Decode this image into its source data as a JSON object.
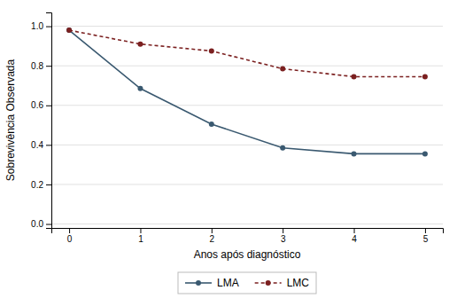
{
  "chart_data": {
    "type": "line",
    "x": [
      0,
      1,
      2,
      3,
      4,
      5
    ],
    "series": [
      {
        "name": "LMA",
        "color": "#3a5970",
        "values": [
          0.98,
          0.685,
          0.505,
          0.385,
          0.355,
          0.355
        ],
        "line_style": "solid",
        "marker": "circle"
      },
      {
        "name": "LMC",
        "color": "#7b2020",
        "values": [
          0.98,
          0.91,
          0.875,
          0.785,
          0.745,
          0.745
        ],
        "line_style": "dashed",
        "marker": "circle"
      }
    ],
    "xlabel": "Anos após diagnóstico",
    "ylabel": "Sobrevivência Observada",
    "xlim": [
      -0.25,
      5.25
    ],
    "ylim": [
      -0.02,
      1.07
    ],
    "xticks": [
      0,
      1,
      2,
      3,
      4,
      5
    ],
    "yticks": [
      {
        "value": 0.0,
        "label": "0.0"
      },
      0.2,
      0.4,
      0.6,
      0.8,
      {
        "value": 1.0,
        "label": "1.0"
      }
    ],
    "grid": "y",
    "legend": "bottom"
  }
}
